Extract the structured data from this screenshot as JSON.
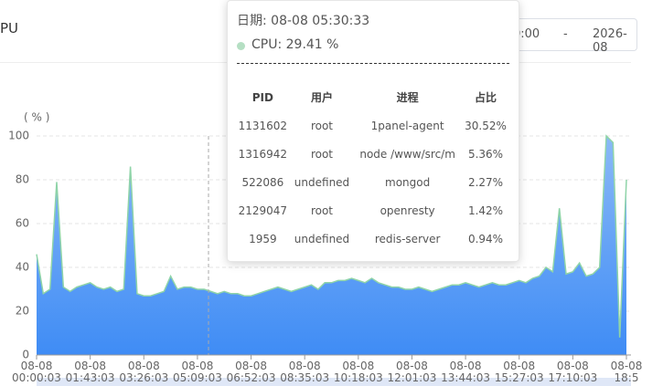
{
  "header": {
    "title": "PU",
    "date_start": "0:00",
    "separator": "-",
    "date_end": "2026-08"
  },
  "chart_data": {
    "type": "area",
    "y_axis_label": "( % )",
    "ylim": [
      0,
      100
    ],
    "yticks": [
      0,
      20,
      40,
      60,
      80,
      100
    ],
    "grid": true,
    "area_colors": [
      "#8ab9f7",
      "#3f8cf5"
    ],
    "categories": [
      "08-08\n00:00:03",
      null,
      null,
      null,
      null,
      null,
      null,
      null,
      "08-08\n01:43:03",
      null,
      null,
      null,
      null,
      null,
      null,
      null,
      "08-08\n03:26:03",
      null,
      null,
      null,
      null,
      null,
      null,
      null,
      "08-08\n05:09:03",
      null,
      null,
      null,
      null,
      null,
      null,
      null,
      "08-08\n06:52:03",
      null,
      null,
      null,
      null,
      null,
      null,
      null,
      "08-08\n08:35:03",
      null,
      null,
      null,
      null,
      null,
      null,
      null,
      "08-08\n10:18:03",
      null,
      null,
      null,
      null,
      null,
      null,
      null,
      "08-08\n12:01:03",
      null,
      null,
      null,
      null,
      null,
      null,
      null,
      "08-08\n13:44:03",
      null,
      null,
      null,
      null,
      null,
      null,
      null,
      "08-08\n15:27:03",
      null,
      null,
      null,
      null,
      null,
      null,
      null,
      "08-08\n17:10:03",
      null,
      null,
      null,
      null,
      null,
      null,
      null,
      "08-08\n18:5"
    ],
    "series": [
      {
        "name": "CPU",
        "color": "#8fd4a8",
        "values": [
          46,
          28,
          30,
          79,
          31,
          29,
          31,
          32,
          33,
          31,
          30,
          31,
          29,
          30,
          86,
          28,
          27,
          27,
          28,
          29,
          36,
          30,
          31,
          31,
          30,
          30,
          29,
          28,
          29,
          28,
          28,
          27,
          27,
          28,
          29,
          30,
          31,
          30,
          29,
          30,
          31,
          32,
          30,
          33,
          33,
          34,
          34,
          35,
          34,
          33,
          35,
          33,
          32,
          31,
          31,
          30,
          30,
          31,
          30,
          29,
          30,
          31,
          32,
          32,
          33,
          32,
          31,
          32,
          33,
          32,
          32,
          33,
          34,
          33,
          35,
          36,
          40,
          38,
          67,
          37,
          38,
          42,
          36,
          37,
          40,
          100,
          97,
          8,
          80
        ]
      }
    ]
  },
  "tooltip": {
    "date": "日期: 08-08 05:30:33",
    "series": "CPU: 29.41 %",
    "dot_color": "#b5dfc3",
    "headers": [
      "PID",
      "用户",
      "进程",
      "占比"
    ],
    "rows": [
      [
        "1131602",
        "root",
        "1panel-agent",
        "30.52%"
      ],
      [
        "1316942",
        "root",
        "node /www/src/m",
        "5.36%"
      ],
      [
        "522086",
        "undefined",
        "mongod",
        "2.27%"
      ],
      [
        "2129047",
        "root",
        "openresty",
        "1.42%"
      ],
      [
        "1959",
        "undefined",
        "redis-server",
        "0.94%"
      ]
    ]
  }
}
